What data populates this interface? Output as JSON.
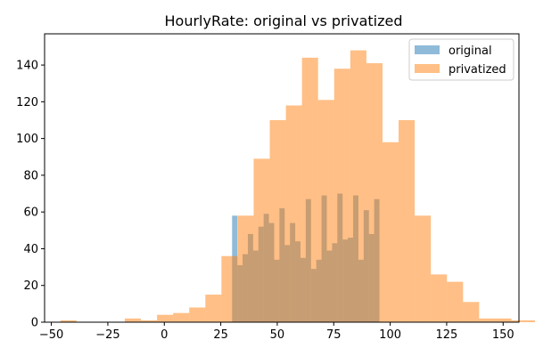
{
  "chart_data": {
    "type": "histogram",
    "title": "HourlyRate: original vs privatized",
    "xlabel": "",
    "ylabel": "",
    "xlim": [
      -53,
      157
    ],
    "ylim": [
      0,
      157
    ],
    "xticks": [
      -50,
      -25,
      0,
      25,
      50,
      75,
      100,
      125,
      150
    ],
    "yticks": [
      0,
      20,
      40,
      60,
      80,
      100,
      120,
      140
    ],
    "grid": false,
    "legend_position": "top-right",
    "series": [
      {
        "name": "original",
        "color": "#1f77b4",
        "alpha": 0.5,
        "bin_start": 30,
        "bin_width": 2.33,
        "counts": [
          58,
          31,
          37,
          48,
          39,
          52,
          59,
          54,
          34,
          62,
          42,
          54,
          44,
          35,
          67,
          29,
          34,
          69,
          39,
          43,
          70,
          45,
          46,
          69,
          34,
          61,
          48,
          67
        ]
      },
      {
        "name": "privatized",
        "color": "#ff7f0e",
        "alpha": 0.5,
        "bin_start": -46,
        "bin_width": 7.13,
        "counts": [
          1,
          0,
          0,
          0,
          2,
          1,
          4,
          5,
          8,
          15,
          36,
          58,
          89,
          110,
          118,
          144,
          121,
          138,
          148,
          141,
          98,
          110,
          58,
          26,
          22,
          11,
          2,
          2,
          1,
          1
        ]
      }
    ]
  }
}
